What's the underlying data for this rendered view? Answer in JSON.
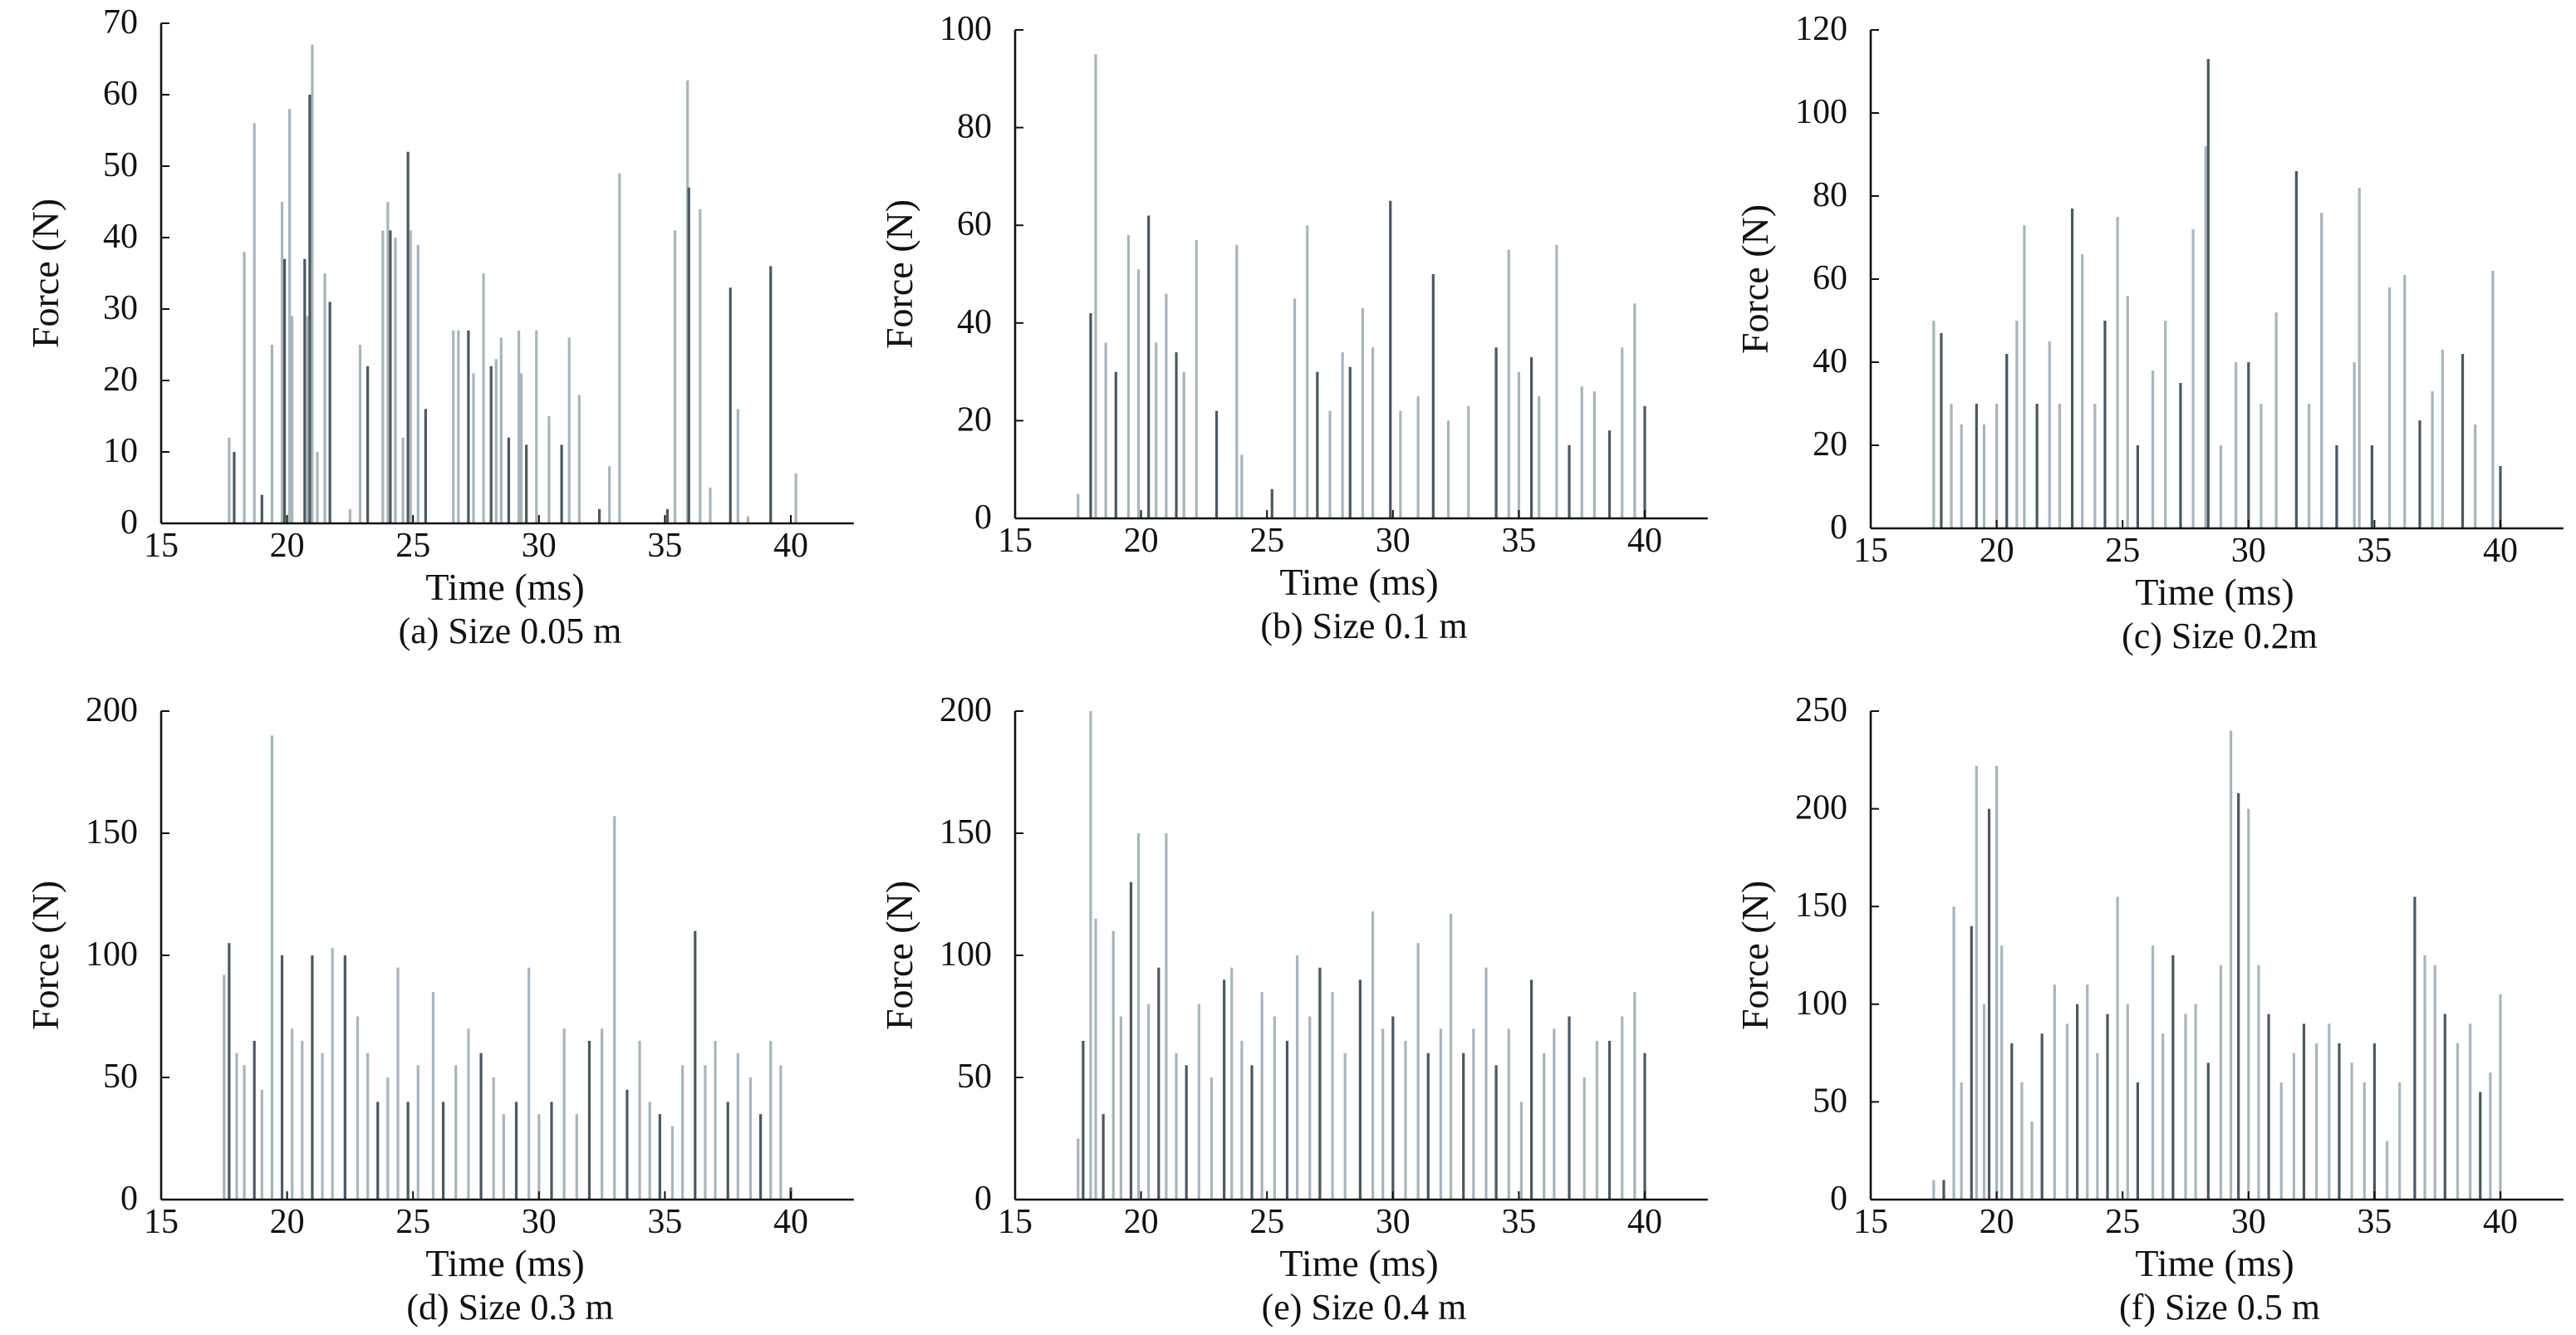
{
  "colors": {
    "dark": "#4c585d",
    "light": "#a9b5b9",
    "axis": "#111111"
  },
  "chart_data": [
    {
      "type": "bar",
      "id": "a",
      "title": "(a) Size 0.05 m",
      "xlabel": "Time (ms)",
      "ylabel": "Force (N)",
      "xlim": [
        15,
        42.5
      ],
      "ylim": [
        0,
        70
      ],
      "xticks": [
        15,
        20,
        25,
        30,
        35,
        40
      ],
      "yticks": [
        0,
        10,
        20,
        30,
        40,
        50,
        60,
        70
      ],
      "spikes": [
        [
          17.7,
          12
        ],
        [
          17.9,
          10
        ],
        [
          18.3,
          38
        ],
        [
          18.7,
          56
        ],
        [
          19.0,
          4
        ],
        [
          19.4,
          25
        ],
        [
          19.8,
          45
        ],
        [
          19.9,
          37
        ],
        [
          20.1,
          58
        ],
        [
          20.2,
          29
        ],
        [
          20.7,
          37
        ],
        [
          20.8,
          29
        ],
        [
          21.0,
          67
        ],
        [
          20.9,
          60
        ],
        [
          21.2,
          10
        ],
        [
          21.5,
          35
        ],
        [
          21.7,
          31
        ],
        [
          22.5,
          2
        ],
        [
          22.9,
          25
        ],
        [
          23.2,
          22
        ],
        [
          23.8,
          41
        ],
        [
          24.0,
          45
        ],
        [
          24.1,
          41
        ],
        [
          24.3,
          40
        ],
        [
          24.6,
          12
        ],
        [
          24.8,
          52
        ],
        [
          24.9,
          41
        ],
        [
          25.2,
          39
        ],
        [
          25.5,
          16
        ],
        [
          26.6,
          27
        ],
        [
          26.8,
          27
        ],
        [
          27.2,
          27
        ],
        [
          27.4,
          21
        ],
        [
          27.8,
          35
        ],
        [
          28.1,
          22
        ],
        [
          28.3,
          23
        ],
        [
          28.5,
          26
        ],
        [
          28.8,
          12
        ],
        [
          29.2,
          27
        ],
        [
          29.3,
          21
        ],
        [
          29.5,
          11
        ],
        [
          29.9,
          27
        ],
        [
          30.4,
          15
        ],
        [
          30.9,
          11
        ],
        [
          31.2,
          26
        ],
        [
          31.6,
          18
        ],
        [
          32.4,
          2
        ],
        [
          32.8,
          8
        ],
        [
          33.2,
          49
        ],
        [
          35.1,
          2
        ],
        [
          35.4,
          41
        ],
        [
          35.9,
          62
        ],
        [
          35.95,
          47
        ],
        [
          36.4,
          44
        ],
        [
          36.8,
          5
        ],
        [
          37.6,
          33
        ],
        [
          37.9,
          16
        ],
        [
          38.3,
          1
        ],
        [
          39.2,
          36
        ],
        [
          40.2,
          7
        ]
      ]
    },
    {
      "type": "bar",
      "id": "b",
      "title": "(b) Size 0.1 m",
      "xlabel": "Time (ms)",
      "ylabel": "Force (N)",
      "xlim": [
        15,
        42.5
      ],
      "ylim": [
        0,
        100
      ],
      "xticks": [
        15,
        20,
        25,
        30,
        35,
        40
      ],
      "yticks": [
        0,
        20,
        40,
        60,
        80,
        100
      ],
      "spikes": [
        [
          17.5,
          5
        ],
        [
          18.0,
          42
        ],
        [
          18.2,
          95
        ],
        [
          18.6,
          36
        ],
        [
          19.0,
          30
        ],
        [
          19.5,
          58
        ],
        [
          19.9,
          51
        ],
        [
          20.3,
          62
        ],
        [
          20.6,
          36
        ],
        [
          21.0,
          46
        ],
        [
          21.4,
          34
        ],
        [
          21.7,
          30
        ],
        [
          22.2,
          57
        ],
        [
          23.0,
          22
        ],
        [
          23.8,
          56
        ],
        [
          24.0,
          13
        ],
        [
          25.2,
          6
        ],
        [
          26.1,
          45
        ],
        [
          26.6,
          60
        ],
        [
          27.0,
          30
        ],
        [
          27.5,
          22
        ],
        [
          28.0,
          34
        ],
        [
          28.3,
          31
        ],
        [
          28.8,
          43
        ],
        [
          29.2,
          35
        ],
        [
          29.9,
          65
        ],
        [
          30.3,
          22
        ],
        [
          31.0,
          25
        ],
        [
          31.6,
          50
        ],
        [
          32.2,
          20
        ],
        [
          33.0,
          23
        ],
        [
          34.1,
          35
        ],
        [
          34.6,
          55
        ],
        [
          35.0,
          30
        ],
        [
          35.5,
          33
        ],
        [
          35.8,
          25
        ],
        [
          36.5,
          56
        ],
        [
          37.0,
          15
        ],
        [
          37.5,
          27
        ],
        [
          38.0,
          26
        ],
        [
          38.6,
          18
        ],
        [
          39.1,
          35
        ],
        [
          39.6,
          44
        ],
        [
          40.0,
          23
        ]
      ]
    },
    {
      "type": "bar",
      "id": "c",
      "title": "(c)  Size 0.2m",
      "xlabel": "Time (ms)",
      "ylabel": "Force (N)",
      "xlim": [
        15,
        42.5
      ],
      "ylim": [
        0,
        120
      ],
      "xticks": [
        15,
        20,
        25,
        30,
        35,
        40
      ],
      "yticks": [
        0,
        20,
        40,
        60,
        80,
        100,
        120
      ],
      "spikes": [
        [
          17.5,
          50
        ],
        [
          17.8,
          47
        ],
        [
          18.2,
          30
        ],
        [
          18.6,
          25
        ],
        [
          19.2,
          30
        ],
        [
          19.5,
          25
        ],
        [
          20.0,
          30
        ],
        [
          20.4,
          42
        ],
        [
          20.8,
          50
        ],
        [
          21.1,
          73
        ],
        [
          21.6,
          30
        ],
        [
          22.1,
          45
        ],
        [
          22.5,
          30
        ],
        [
          23.0,
          77
        ],
        [
          23.4,
          66
        ],
        [
          23.9,
          30
        ],
        [
          24.3,
          50
        ],
        [
          24.8,
          75
        ],
        [
          25.2,
          56
        ],
        [
          25.6,
          20
        ],
        [
          26.2,
          38
        ],
        [
          26.7,
          50
        ],
        [
          27.3,
          35
        ],
        [
          27.8,
          72
        ],
        [
          28.3,
          92
        ],
        [
          28.4,
          113
        ],
        [
          28.9,
          20
        ],
        [
          29.5,
          40
        ],
        [
          30.0,
          40
        ],
        [
          30.5,
          30
        ],
        [
          31.1,
          52
        ],
        [
          31.9,
          86
        ],
        [
          32.4,
          30
        ],
        [
          32.9,
          76
        ],
        [
          33.5,
          20
        ],
        [
          34.2,
          40
        ],
        [
          34.4,
          82
        ],
        [
          34.9,
          20
        ],
        [
          35.6,
          58
        ],
        [
          36.2,
          61
        ],
        [
          36.8,
          26
        ],
        [
          37.3,
          33
        ],
        [
          37.7,
          43
        ],
        [
          38.5,
          42
        ],
        [
          39.0,
          25
        ],
        [
          39.7,
          62
        ],
        [
          40.0,
          15
        ]
      ]
    },
    {
      "type": "bar",
      "id": "d",
      "title": "(d)  Size 0.3 m",
      "xlabel": "Time (ms)",
      "ylabel": "Force (N)",
      "xlim": [
        15,
        42.5
      ],
      "ylim": [
        0,
        200
      ],
      "xticks": [
        15,
        20,
        25,
        30,
        35,
        40
      ],
      "yticks": [
        0,
        50,
        100,
        150,
        200
      ],
      "spikes": [
        [
          17.5,
          92
        ],
        [
          17.7,
          105
        ],
        [
          18.0,
          60
        ],
        [
          18.3,
          55
        ],
        [
          18.7,
          65
        ],
        [
          19.0,
          45
        ],
        [
          19.4,
          190
        ],
        [
          19.8,
          100
        ],
        [
          20.2,
          70
        ],
        [
          20.6,
          65
        ],
        [
          21.0,
          100
        ],
        [
          21.4,
          60
        ],
        [
          21.8,
          103
        ],
        [
          22.3,
          100
        ],
        [
          22.8,
          75
        ],
        [
          23.2,
          60
        ],
        [
          23.6,
          40
        ],
        [
          24.0,
          50
        ],
        [
          24.4,
          95
        ],
        [
          24.8,
          40
        ],
        [
          25.2,
          55
        ],
        [
          25.8,
          85
        ],
        [
          26.2,
          40
        ],
        [
          26.7,
          55
        ],
        [
          27.2,
          70
        ],
        [
          27.7,
          60
        ],
        [
          28.2,
          50
        ],
        [
          28.6,
          35
        ],
        [
          29.1,
          40
        ],
        [
          29.6,
          95
        ],
        [
          30.0,
          35
        ],
        [
          30.5,
          40
        ],
        [
          31.0,
          70
        ],
        [
          31.5,
          35
        ],
        [
          32.0,
          65
        ],
        [
          32.5,
          70
        ],
        [
          33.0,
          157
        ],
        [
          33.5,
          45
        ],
        [
          34.0,
          65
        ],
        [
          34.4,
          40
        ],
        [
          34.8,
          35
        ],
        [
          35.3,
          30
        ],
        [
          35.7,
          55
        ],
        [
          36.2,
          110
        ],
        [
          36.6,
          55
        ],
        [
          37.0,
          65
        ],
        [
          37.5,
          40
        ],
        [
          37.9,
          60
        ],
        [
          38.4,
          50
        ],
        [
          38.8,
          35
        ],
        [
          39.2,
          65
        ],
        [
          39.6,
          55
        ],
        [
          40.0,
          5
        ]
      ]
    },
    {
      "type": "bar",
      "id": "e",
      "title": "(e)  Size 0.4 m",
      "xlabel": "Time (ms)",
      "ylabel": "Force (N)",
      "xlim": [
        15,
        42.5
      ],
      "ylim": [
        0,
        200
      ],
      "xticks": [
        15,
        20,
        25,
        30,
        35,
        40
      ],
      "yticks": [
        0,
        50,
        100,
        150,
        200
      ],
      "spikes": [
        [
          17.5,
          25
        ],
        [
          17.7,
          65
        ],
        [
          18.0,
          200
        ],
        [
          18.2,
          115
        ],
        [
          18.5,
          35
        ],
        [
          18.9,
          110
        ],
        [
          19.2,
          75
        ],
        [
          19.6,
          130
        ],
        [
          19.9,
          150
        ],
        [
          20.3,
          80
        ],
        [
          20.7,
          95
        ],
        [
          21.0,
          150
        ],
        [
          21.4,
          60
        ],
        [
          21.8,
          55
        ],
        [
          22.3,
          80
        ],
        [
          22.8,
          50
        ],
        [
          23.3,
          90
        ],
        [
          23.6,
          95
        ],
        [
          24.0,
          65
        ],
        [
          24.4,
          55
        ],
        [
          24.8,
          85
        ],
        [
          25.3,
          75
        ],
        [
          25.8,
          65
        ],
        [
          26.2,
          100
        ],
        [
          26.7,
          75
        ],
        [
          27.1,
          95
        ],
        [
          27.6,
          85
        ],
        [
          28.1,
          60
        ],
        [
          28.7,
          90
        ],
        [
          29.2,
          118
        ],
        [
          29.6,
          70
        ],
        [
          30.0,
          75
        ],
        [
          30.5,
          65
        ],
        [
          31.0,
          105
        ],
        [
          31.4,
          60
        ],
        [
          31.9,
          70
        ],
        [
          32.3,
          117
        ],
        [
          32.8,
          60
        ],
        [
          33.2,
          70
        ],
        [
          33.7,
          95
        ],
        [
          34.1,
          55
        ],
        [
          34.6,
          70
        ],
        [
          35.1,
          40
        ],
        [
          35.5,
          90
        ],
        [
          36.0,
          60
        ],
        [
          36.4,
          70
        ],
        [
          37.0,
          75
        ],
        [
          37.6,
          50
        ],
        [
          38.1,
          65
        ],
        [
          38.6,
          65
        ],
        [
          39.1,
          75
        ],
        [
          39.6,
          85
        ],
        [
          40.0,
          60
        ]
      ]
    },
    {
      "type": "bar",
      "id": "f",
      "title": "(f)  Size 0.5 m",
      "xlabel": "Time (ms)",
      "ylabel": "Force (N)",
      "xlim": [
        15,
        42.5
      ],
      "ylim": [
        0,
        250
      ],
      "xticks": [
        15,
        20,
        25,
        30,
        35,
        40
      ],
      "yticks": [
        0,
        50,
        100,
        150,
        200,
        250
      ],
      "spikes": [
        [
          17.5,
          10
        ],
        [
          17.9,
          10
        ],
        [
          18.3,
          150
        ],
        [
          18.6,
          60
        ],
        [
          19.0,
          140
        ],
        [
          19.2,
          222
        ],
        [
          19.5,
          100
        ],
        [
          19.7,
          200
        ],
        [
          20.0,
          222
        ],
        [
          20.2,
          130
        ],
        [
          20.6,
          80
        ],
        [
          21.0,
          60
        ],
        [
          21.4,
          40
        ],
        [
          21.8,
          85
        ],
        [
          22.3,
          110
        ],
        [
          22.8,
          90
        ],
        [
          23.2,
          100
        ],
        [
          23.6,
          110
        ],
        [
          24.0,
          75
        ],
        [
          24.4,
          95
        ],
        [
          24.8,
          155
        ],
        [
          25.2,
          100
        ],
        [
          25.6,
          60
        ],
        [
          26.2,
          130
        ],
        [
          26.6,
          85
        ],
        [
          27.0,
          125
        ],
        [
          27.5,
          95
        ],
        [
          27.9,
          100
        ],
        [
          28.4,
          70
        ],
        [
          28.9,
          120
        ],
        [
          29.3,
          240
        ],
        [
          29.6,
          208
        ],
        [
          30.0,
          200
        ],
        [
          30.4,
          120
        ],
        [
          30.8,
          95
        ],
        [
          31.3,
          60
        ],
        [
          31.8,
          75
        ],
        [
          32.2,
          90
        ],
        [
          32.7,
          80
        ],
        [
          33.2,
          90
        ],
        [
          33.6,
          80
        ],
        [
          34.1,
          70
        ],
        [
          34.6,
          60
        ],
        [
          35.0,
          80
        ],
        [
          35.5,
          30
        ],
        [
          36.0,
          60
        ],
        [
          36.6,
          155
        ],
        [
          37.0,
          125
        ],
        [
          37.4,
          120
        ],
        [
          37.8,
          95
        ],
        [
          38.3,
          80
        ],
        [
          38.8,
          90
        ],
        [
          39.2,
          55
        ],
        [
          39.6,
          65
        ],
        [
          40.0,
          105
        ]
      ]
    }
  ]
}
